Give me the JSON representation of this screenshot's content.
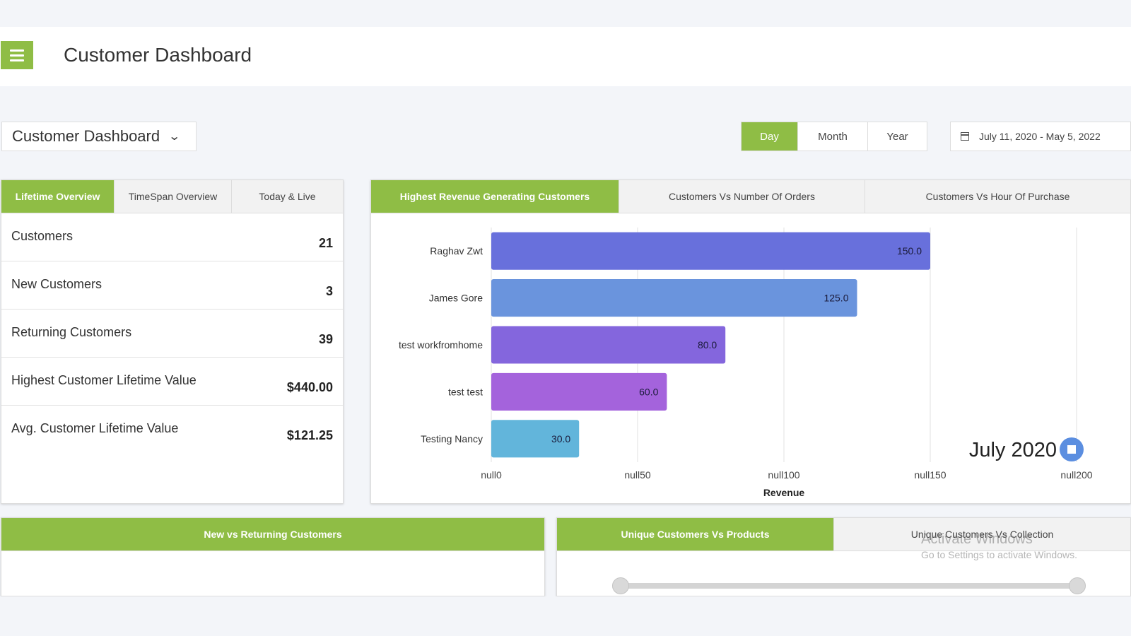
{
  "header": {
    "title": "Customer Dashboard"
  },
  "dashboard_select": {
    "value": "Customer Dashboard"
  },
  "range_buttons": [
    {
      "label": "Day",
      "active": true
    },
    {
      "label": "Month",
      "active": false
    },
    {
      "label": "Year",
      "active": false
    }
  ],
  "date_range": "July 11, 2020 - May 5, 2022",
  "overview": {
    "tabs": [
      "Lifetime Overview",
      "TimeSpan Overview",
      "Today & Live"
    ],
    "active_tab": 0,
    "stats": [
      {
        "label": "Customers",
        "value": "21"
      },
      {
        "label": "New Customers",
        "value": "3"
      },
      {
        "label": "Returning Customers",
        "value": "39"
      },
      {
        "label": "Highest Customer Lifetime Value",
        "value": "$440.00"
      },
      {
        "label": "Avg. Customer Lifetime Value",
        "value": "$121.25"
      }
    ]
  },
  "revenue_chart": {
    "tabs": [
      "Highest Revenue Generating Customers",
      "Customers Vs Number Of Orders",
      "Customers Vs Hour Of Purchase"
    ],
    "active_tab": 0,
    "timeline_label": "July 2020",
    "chart_data": {
      "type": "bar",
      "orientation": "horizontal",
      "categories": [
        "Raghav Zwt",
        "James Gore",
        "test workfromhome",
        "test test",
        "Testing Nancy"
      ],
      "values": [
        150,
        125,
        80,
        60,
        30
      ],
      "value_labels": [
        "150.0",
        "125.0",
        "80.0",
        "60.0",
        "30.0"
      ],
      "colors": [
        "#6870dc",
        "#6a94dd",
        "#8466dd",
        "#a463dc",
        "#62b5db"
      ],
      "xlabel": "Revenue",
      "xlim": [
        0,
        200
      ],
      "xticks": [
        0,
        50,
        100,
        150,
        200
      ],
      "xtick_labels": [
        "null0",
        "null50",
        "null100",
        "null150",
        "null200"
      ],
      "grid": true
    }
  },
  "new_vs_returning": {
    "title": "New vs Returning Customers"
  },
  "customers_products": {
    "tabs": [
      "Unique Customers Vs Products",
      "Unique Customers Vs Collection"
    ],
    "active_tab": 0
  },
  "watermark": {
    "title": "Activate Windows",
    "subtitle": "Go to Settings to activate Windows."
  },
  "colors": {
    "accent": "#8fbd45",
    "panel_bg": "#ffffff",
    "page_bg": "#f3f5f9"
  }
}
